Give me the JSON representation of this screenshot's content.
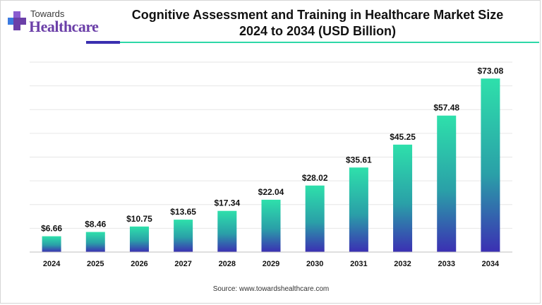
{
  "brand": {
    "line1": "Towards",
    "line2": "Healthcare",
    "colors": {
      "purple": "#6b3fa8",
      "teal": "#2ed8a8",
      "navy": "#3a2fb0",
      "mark_blue": "#3b7be0"
    }
  },
  "header": {
    "title_line1": "Cognitive Assessment and Training in Healthcare Market Size",
    "title_line2": "2024 to 2034 (USD Billion)"
  },
  "accent": {
    "dark": "#3a2fb0",
    "teal": "#2ed8a8"
  },
  "source": "Source: www.towardshealthcare.com",
  "chart_data": {
    "type": "bar",
    "title": "Cognitive Assessment and Training in Healthcare Market Size 2024 to 2034 (USD Billion)",
    "categories": [
      "2024",
      "2025",
      "2026",
      "2027",
      "2028",
      "2029",
      "2030",
      "2031",
      "2032",
      "2033",
      "2034"
    ],
    "values": [
      6.66,
      8.46,
      10.75,
      13.65,
      17.34,
      22.04,
      28.02,
      35.61,
      45.25,
      57.48,
      73.08
    ],
    "data_labels": [
      "$6.66",
      "$8.46",
      "$10.75",
      "$13.65",
      "$17.34",
      "$22.04",
      "$28.02",
      "$35.61",
      "$45.25",
      "$57.48",
      "$73.08"
    ],
    "ylim": [
      0,
      80
    ],
    "grid": true,
    "xlabel": "",
    "ylabel": "",
    "bar_gradient": {
      "top": "#2ee0ab",
      "bottom": "#3b2fb3"
    }
  }
}
